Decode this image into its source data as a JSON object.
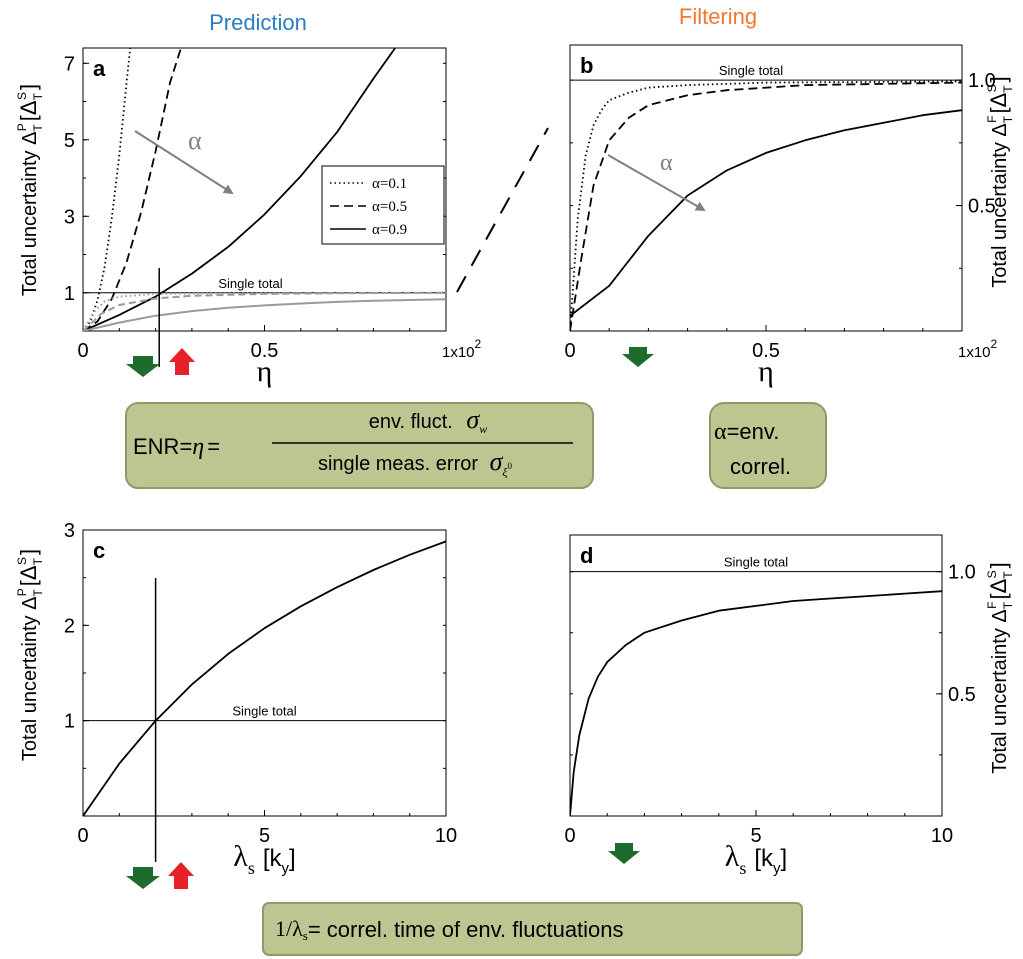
{
  "headings": {
    "left": "Prediction",
    "right": "Filtering"
  },
  "colors": {
    "prediction": "#2a7fc1",
    "filtering": "#ef7a2e",
    "box_fill": "#bcc690",
    "box_stroke": "#8f9a6a",
    "down_arrow": "#1e6b2e",
    "up_arrow": "#e8202a",
    "grey_curve": "#9a9a9a",
    "arrow_grey": "#808080"
  },
  "boxes": {
    "enr": {
      "lhs": "ENR=",
      "eta": "η",
      "equals": "=",
      "numerator": "env. fluct.",
      "num_symbol": "σ",
      "num_sub": "w",
      "denominator": "single meas. error",
      "den_symbol": "σ",
      "den_sub": "ξ",
      "den_sup": "0"
    },
    "alpha": {
      "line1_sym": "α",
      "line1_text": "=env.",
      "line2": "correl."
    },
    "lambda": {
      "lead": "1/λ",
      "lead_sub": "s",
      "text": "= correl. time of env. fluctuations"
    }
  },
  "chart_data": [
    {
      "id": "a",
      "type": "line",
      "panel_label": "a",
      "xlabel": "η",
      "x_multiplier": "1x10",
      "x_multiplier_exp": "2",
      "ylabel": "Total uncertainty Δ",
      "ylabel_sub": "T",
      "ylabel_sup": "P",
      "ylabel_unit_sym": "Δ",
      "ylabel_unit_sub": "T",
      "ylabel_unit_sup": "S",
      "xlim": [
        0,
        1
      ],
      "ylim": [
        0,
        7.4
      ],
      "xticks": [
        "0",
        "0.5"
      ],
      "xtick_values": [
        0,
        0.5
      ],
      "yticks": [
        "1",
        "3",
        "5",
        "7"
      ],
      "ytick_values": [
        1,
        3,
        5,
        7
      ],
      "reference_label": "Single total",
      "reference_y": 1,
      "arrow_label": "α",
      "legend": [
        "α=0.1",
        "α=0.5",
        "α=0.9"
      ],
      "legend_position": "middle-right",
      "marker_x": 0.21,
      "series": [
        {
          "name": "α=0.1",
          "style": "dotted",
          "x": [
            0,
            0.02,
            0.04,
            0.06,
            0.08,
            0.1,
            0.12,
            0.13
          ],
          "y": [
            0,
            0.25,
            0.8,
            1.7,
            3.0,
            4.6,
            6.5,
            7.4
          ]
        },
        {
          "name": "α=0.5",
          "style": "dashed",
          "x": [
            0,
            0.04,
            0.08,
            0.12,
            0.16,
            0.2,
            0.24,
            0.27
          ],
          "y": [
            0,
            0.25,
            0.85,
            1.8,
            3.1,
            4.7,
            6.5,
            7.4
          ]
        },
        {
          "name": "α=0.9",
          "style": "solid",
          "x": [
            0,
            0.1,
            0.2,
            0.3,
            0.4,
            0.5,
            0.6,
            0.7,
            0.8,
            0.86
          ],
          "y": [
            0,
            0.42,
            0.9,
            1.5,
            2.2,
            3.05,
            4.05,
            5.2,
            6.6,
            7.4
          ]
        },
        {
          "name": "",
          "style": "grey-dashed",
          "x": [
            0,
            0.05,
            0.1,
            0.2,
            0.3,
            0.5,
            0.75,
            1.0
          ],
          "y": [
            0,
            0.45,
            0.68,
            0.85,
            0.92,
            0.97,
            0.99,
            1.0
          ]
        },
        {
          "name": "",
          "style": "grey-dotted",
          "x": [
            0,
            0.03,
            0.06,
            0.1,
            0.2,
            0.4,
            1.0
          ],
          "y": [
            0,
            0.5,
            0.78,
            0.9,
            0.97,
            0.99,
            1.0
          ]
        },
        {
          "name": "",
          "style": "grey-solid",
          "x": [
            0,
            0.1,
            0.2,
            0.3,
            0.4,
            0.5,
            0.6,
            0.7,
            0.8,
            0.9,
            1.0
          ],
          "y": [
            0,
            0.22,
            0.4,
            0.52,
            0.61,
            0.67,
            0.72,
            0.76,
            0.79,
            0.81,
            0.83
          ]
        }
      ]
    },
    {
      "id": "b",
      "type": "line",
      "panel_label": "b",
      "xlabel": "η",
      "x_multiplier": "1x10",
      "x_multiplier_exp": "2",
      "ylabel": "Total uncertainty Δ",
      "ylabel_sub": "T",
      "ylabel_sup": "F",
      "ylabel_unit_sym": "Δ",
      "ylabel_unit_sub": "T",
      "ylabel_unit_sup": "S",
      "xlim": [
        0,
        1
      ],
      "ylim": [
        0,
        1.14
      ],
      "xticks": [
        "0",
        "0.5"
      ],
      "xtick_values": [
        0,
        0.5
      ],
      "yticks": [
        "0.5",
        "1.0"
      ],
      "ytick_values": [
        0.5,
        1.0
      ],
      "reference_label": "Single total",
      "reference_y": 1,
      "arrow_label": "α",
      "series": [
        {
          "name": "α=0.1",
          "style": "dotted",
          "x": [
            0,
            0.02,
            0.04,
            0.06,
            0.08,
            0.1,
            0.15,
            0.2,
            0.3,
            0.5,
            1.0
          ],
          "y": [
            0,
            0.45,
            0.7,
            0.82,
            0.88,
            0.92,
            0.95,
            0.97,
            0.98,
            0.99,
            0.995
          ]
        },
        {
          "name": "α=0.5",
          "style": "dashed",
          "x": [
            0,
            0.03,
            0.06,
            0.1,
            0.15,
            0.2,
            0.3,
            0.4,
            0.6,
            1.0
          ],
          "y": [
            0,
            0.3,
            0.58,
            0.76,
            0.85,
            0.9,
            0.94,
            0.96,
            0.98,
            0.99
          ]
        },
        {
          "name": "α=0.9",
          "style": "solid",
          "x": [
            0,
            0.1,
            0.2,
            0.3,
            0.4,
            0.5,
            0.6,
            0.7,
            0.8,
            0.9,
            1.0
          ],
          "y": [
            0.06,
            0.18,
            0.38,
            0.54,
            0.64,
            0.71,
            0.76,
            0.8,
            0.83,
            0.86,
            0.88
          ]
        }
      ]
    },
    {
      "id": "c",
      "type": "line",
      "panel_label": "c",
      "xlabel": "λ",
      "xlabel_sub": "s",
      "xlabel_unit": "[k",
      "xlabel_unit_sub": "y",
      "xlabel_close": "]",
      "ylabel": "Total uncertainty Δ",
      "ylabel_sub": "T",
      "ylabel_sup": "P",
      "ylabel_unit_sym": "Δ",
      "ylabel_unit_sub": "T",
      "ylabel_unit_sup": "S",
      "xlim": [
        0,
        10
      ],
      "ylim": [
        0,
        3
      ],
      "xticks": [
        "0",
        "5",
        "10"
      ],
      "xtick_values": [
        0,
        5,
        10
      ],
      "yticks": [
        "1",
        "2",
        "3"
      ],
      "ytick_values": [
        1,
        2,
        3
      ],
      "reference_label": "Single total",
      "reference_y": 1,
      "marker_x": 2.0,
      "series": [
        {
          "name": "",
          "style": "solid",
          "x": [
            0,
            1,
            2,
            3,
            4,
            5,
            6,
            7,
            8,
            9,
            10
          ],
          "y": [
            0,
            0.55,
            1.0,
            1.38,
            1.7,
            1.97,
            2.2,
            2.4,
            2.58,
            2.74,
            2.88
          ]
        }
      ]
    },
    {
      "id": "d",
      "type": "line",
      "panel_label": "d",
      "xlabel": "λ",
      "xlabel_sub": "s",
      "xlabel_unit": "[k",
      "xlabel_unit_sub": "y",
      "xlabel_close": "]",
      "ylabel": "Total uncertainty Δ",
      "ylabel_sub": "T",
      "ylabel_sup": "F",
      "ylabel_unit_sym": "Δ",
      "ylabel_unit_sub": "T",
      "ylabel_unit_sup": "S",
      "xlim": [
        0,
        10
      ],
      "ylim": [
        0,
        1.15
      ],
      "xticks": [
        "0",
        "5",
        "10"
      ],
      "xtick_values": [
        0,
        5,
        10
      ],
      "yticks": [
        "0.5",
        "1.0"
      ],
      "ytick_values": [
        0.5,
        1.0
      ],
      "reference_label": "Single total",
      "reference_y": 1,
      "series": [
        {
          "name": "",
          "style": "solid",
          "x": [
            0,
            0.1,
            0.25,
            0.5,
            0.75,
            1,
            1.5,
            2,
            3,
            4,
            5,
            6,
            7,
            8,
            9,
            10
          ],
          "y": [
            0,
            0.18,
            0.33,
            0.48,
            0.57,
            0.63,
            0.7,
            0.75,
            0.8,
            0.84,
            0.86,
            0.88,
            0.89,
            0.9,
            0.91,
            0.92
          ]
        }
      ]
    }
  ]
}
